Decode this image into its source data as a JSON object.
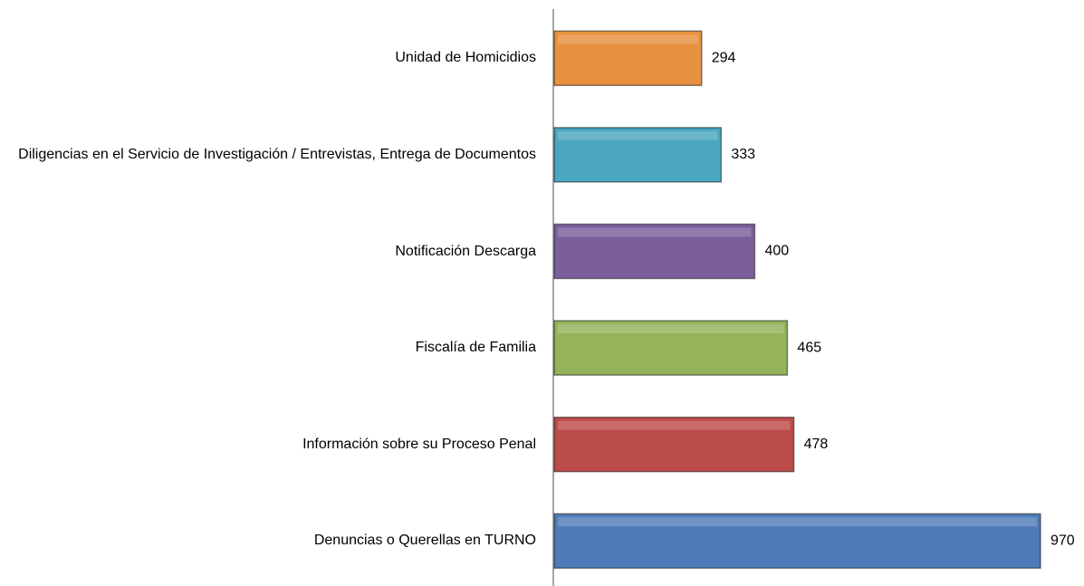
{
  "chart_data": {
    "type": "hbar",
    "categories": [
      "Unidad de Homicidios",
      "Diligencias en el Servicio de Investigación / Entrevistas, Entrega de Documentos",
      "Notificación Descarga",
      "Fiscalía de Familia",
      "Información sobre su Proceso Penal",
      "Denuncias o Querellas en TURNO"
    ],
    "values": [
      294,
      333,
      400,
      465,
      478,
      970
    ],
    "colors": [
      "#e8913f",
      "#4ba6c0",
      "#7b5f9d",
      "#94b35a",
      "#bc4c4a",
      "#4f7cb8"
    ]
  }
}
